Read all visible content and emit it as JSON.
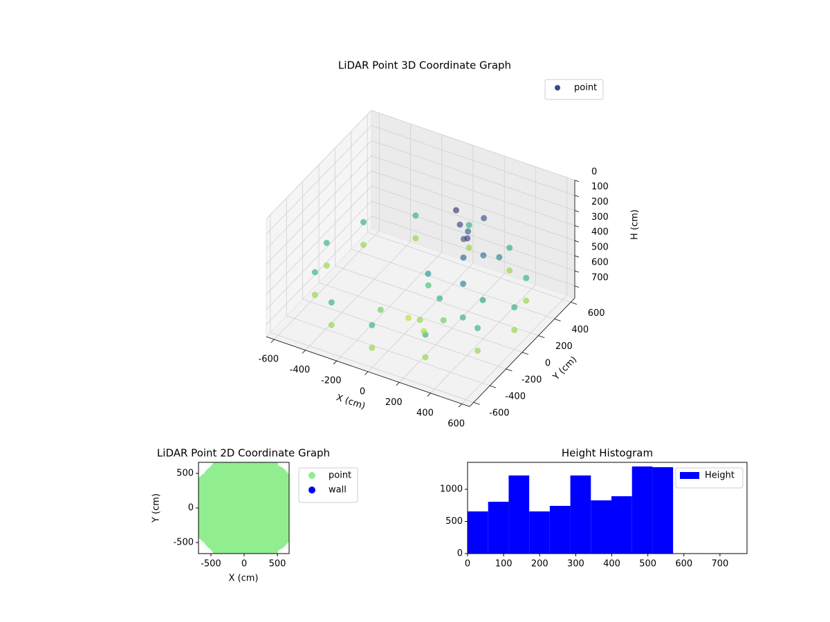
{
  "chart_data": [
    {
      "type": "scatter3d",
      "title": "LiDAR Point 3D Coordinate Graph",
      "xlabel": "X (cm)",
      "ylabel": "Y (cm)",
      "zlabel": "H (cm)",
      "legend": "upper right",
      "colormap": "viridis",
      "z_inverted": true,
      "xlim": [
        -650,
        650
      ],
      "ylim": [
        -650,
        650
      ],
      "zlim": [
        0,
        780
      ],
      "xticks": [
        -600,
        -400,
        -200,
        0,
        200,
        400,
        600
      ],
      "yticks": [
        -600,
        -400,
        -200,
        0,
        200,
        400,
        600
      ],
      "zticks": [
        0,
        100,
        200,
        300,
        400,
        500,
        600,
        700
      ],
      "series": [
        {
          "name": "point",
          "color": "#3e4989",
          "x": [
            600,
            520,
            300,
            0,
            -300,
            -520,
            -600,
            -520,
            -300,
            0,
            300,
            520,
            600,
            520,
            300,
            0,
            -300,
            -520,
            -600,
            -520,
            -300,
            0,
            300,
            520,
            200,
            250,
            150,
            300,
            100,
            200,
            250,
            150,
            350,
            400,
            450,
            50,
            100,
            300,
            200,
            350,
            -100,
            0,
            250,
            400
          ],
          "y": [
            0,
            300,
            520,
            600,
            520,
            300,
            0,
            -300,
            -520,
            -600,
            -520,
            -300,
            0,
            300,
            520,
            600,
            520,
            300,
            0,
            -300,
            -520,
            -600,
            -520,
            -300,
            100,
            50,
            150,
            -50,
            -100,
            -150,
            -200,
            -250,
            100,
            200,
            -100,
            0,
            -200,
            0,
            200,
            -150,
            -300,
            -150,
            300,
            -250
          ],
          "z": [
            500,
            500,
            500,
            500,
            500,
            500,
            500,
            500,
            500,
            500,
            500,
            500,
            650,
            650,
            650,
            650,
            650,
            650,
            650,
            650,
            650,
            650,
            650,
            650,
            150,
            200,
            100,
            250,
            400,
            500,
            600,
            680,
            300,
            350,
            450,
            550,
            650,
            150,
            250,
            350,
            600,
            700,
            200,
            500
          ]
        }
      ]
    },
    {
      "type": "scatter",
      "title": "LiDAR Point 2D Coordinate Graph",
      "xlabel": "X (cm)",
      "ylabel": "Y (cm)",
      "legend": "outside right",
      "xlim": [
        -687,
        677
      ],
      "ylim": [
        -660,
        660
      ],
      "xticks": [
        -500,
        0,
        500
      ],
      "yticks": [
        -500,
        0,
        500
      ],
      "series": [
        {
          "name": "point",
          "color": "#90ee90",
          "x": [
            -600,
            -500,
            -500,
            -300,
            -300,
            0,
            0,
            300,
            300,
            450,
            450,
            550,
            550,
            600,
            -300,
            0,
            200,
            -150,
            -150,
            200,
            200,
            400,
            400,
            -450,
            -450,
            100,
            100,
            -600,
            -550,
            -400,
            -400,
            -200,
            -200,
            0,
            0,
            300,
            300,
            500,
            500
          ],
          "y": [
            0,
            300,
            -300,
            500,
            -500,
            600,
            -600,
            550,
            -550,
            400,
            -400,
            200,
            -200,
            0,
            0,
            0,
            0,
            250,
            -250,
            300,
            -300,
            100,
            -100,
            150,
            -150,
            450,
            -450,
            150,
            -200,
            400,
            -400,
            100,
            -100,
            300,
            -300,
            150,
            -150,
            350,
            -350
          ]
        },
        {
          "name": "wall",
          "color": "#0000ff",
          "x": [],
          "y": []
        }
      ]
    },
    {
      "type": "histogram",
      "title": "Height Histogram",
      "legend": "upper right",
      "xlim": [
        0,
        775
      ],
      "ylim": [
        0,
        1419
      ],
      "xticks": [
        0,
        100,
        200,
        300,
        400,
        500,
        600,
        700
      ],
      "yticks": [
        0,
        500,
        1000
      ],
      "bins": [
        0,
        57,
        114,
        171,
        228,
        285,
        342,
        399,
        456,
        513,
        570
      ],
      "series": [
        {
          "name": "Height",
          "color": "#0000ff",
          "values": [
            656,
            806,
            1215,
            656,
            742,
            1215,
            828,
            892,
            1355,
            1344
          ]
        }
      ]
    }
  ]
}
